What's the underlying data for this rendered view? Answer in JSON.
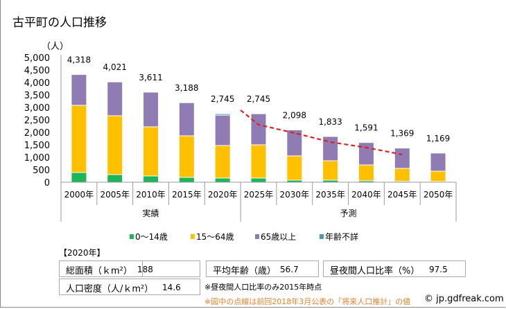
{
  "title": "古平町の人口推移",
  "chart_data": {
    "type": "bar",
    "stacked": true,
    "title": "古平町の人口推移",
    "ylabel": "（人）",
    "xlabel": "",
    "ylim": [
      0,
      5000
    ],
    "yticks": [
      0,
      500,
      1000,
      1500,
      2000,
      2500,
      3000,
      3500,
      4000,
      4500,
      5000
    ],
    "ytick_labels": [
      "0",
      "500",
      "1,000",
      "1,500",
      "2,000",
      "2,500",
      "3,000",
      "3,500",
      "4,000",
      "4,500",
      "5,000"
    ],
    "categories": [
      "2000年",
      "2005年",
      "2010年",
      "2015年",
      "2020年",
      "2025年",
      "2030年",
      "2035年",
      "2040年",
      "2045年",
      "2050年"
    ],
    "groups": [
      {
        "label": "実績",
        "from": 0,
        "to": 4
      },
      {
        "label": "予測",
        "from": 5,
        "to": 10
      }
    ],
    "series": [
      {
        "name": "0〜14歳",
        "color": "#1db55a",
        "values": [
          389,
          305,
          250,
          194,
          167,
          167,
          83,
          83,
          56,
          36,
          28
        ]
      },
      {
        "name": "15〜64歳",
        "color": "#ffc000",
        "values": [
          2694,
          2362,
          1972,
          1667,
          1305,
          1333,
          973,
          778,
          638,
          520,
          416
        ]
      },
      {
        "name": "65歳以上",
        "color": "#8e7cb3",
        "values": [
          1235,
          1354,
          1389,
          1327,
          1218,
          1245,
          1042,
          972,
          897,
          813,
          725
        ]
      },
      {
        "name": "年齢不詳",
        "color": "#4a9bab",
        "values": [
          0,
          0,
          0,
          0,
          55,
          0,
          0,
          0,
          0,
          0,
          0
        ]
      }
    ],
    "totals": [
      4318,
      4021,
      3611,
      3188,
      2745,
      2745,
      2098,
      1833,
      1591,
      1369,
      1169
    ],
    "total_labels": [
      "4,318",
      "4,021",
      "3,611",
      "3,188",
      "2,745",
      "2,745",
      "2,098",
      "1,833",
      "1,591",
      "1,369",
      "1,169"
    ],
    "previous_projection": {
      "name": "前回2018年3月公表の「将来人口推計」",
      "color": "#e0201c",
      "style": "dashed",
      "x_index": [
        4.5,
        5,
        6,
        7,
        8,
        9
      ],
      "values": [
        2889,
        2306,
        1972,
        1611,
        1389,
        1111
      ]
    },
    "legend_position": "bottom",
    "grid": false
  },
  "legend": [
    {
      "label": "0〜14歳",
      "color": "#1db55a"
    },
    {
      "label": "15〜64歳",
      "color": "#ffc000"
    },
    {
      "label": "65歳以上",
      "color": "#8e7cb3"
    },
    {
      "label": "年齢不詳",
      "color": "#4a9bab"
    }
  ],
  "stats": {
    "year_header": "【2020年】",
    "area_label": "総面積（ｋm²）",
    "area_value": "188",
    "density_label": "人口密度（人/ｋm²）",
    "density_value": "14.6",
    "avg_age_label": "平均年齢（歳）",
    "avg_age_value": "56.7",
    "day_night_label": "昼夜間人口比率（%）",
    "day_night_value": "97.5"
  },
  "notes": {
    "note1": "※昼夜間人口比率のみ2015年時点",
    "note2": "※図中の点線は前回2018年3月公表の「将来人口推計」の値"
  },
  "copyright": "© jp.gdfreak.com"
}
